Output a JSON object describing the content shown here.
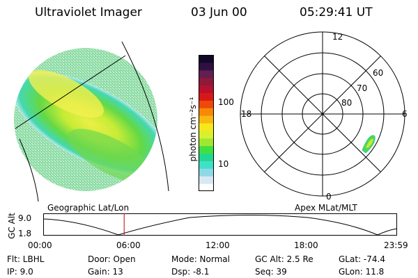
{
  "header": {
    "instrument": "Ultraviolet Imager",
    "date": "03 Jun 00",
    "time": "05:29:41 UT"
  },
  "colorbar": {
    "label": "photon cm⁻²s⁻¹",
    "ticks": [
      "100",
      "10"
    ],
    "colors": [
      "#ffffff",
      "#d8e8f0",
      "#8fd8e8",
      "#40e0c8",
      "#20d890",
      "#40e040",
      "#a0e830",
      "#d8f030",
      "#f8e818",
      "#f8b810",
      "#f88808",
      "#f04808",
      "#d81818",
      "#b81030",
      "#901838",
      "#602050",
      "#301040",
      "#100828"
    ]
  },
  "geo_panel": {
    "label": "Geographic Lat/Lon"
  },
  "polar_panel": {
    "label": "Apex MLat/MLT",
    "mlt_labels": {
      "top": "12",
      "left": "18",
      "right": "6",
      "bottom": "0"
    },
    "lat_labels": [
      "60",
      "70",
      "80"
    ]
  },
  "timeline": {
    "ylabel": "GC Alt",
    "y_ticks": [
      "9.0",
      "1.8"
    ],
    "x_ticks": [
      "00:00",
      "06:00",
      "12:00",
      "18:00",
      "23:59"
    ],
    "current_marker_hours": 5.49
  },
  "info": {
    "flt": "Flt:  LBHL",
    "ip": "IP:  9.0",
    "door": "Door:  Open",
    "gain": "Gain:  13",
    "mode": "Mode:  Normal",
    "dsp": "Dsp:    -8.1",
    "gc_alt": "GC Alt:  2.5 Re",
    "seq": "Seq:  39",
    "glat": "GLat:   -74.4",
    "glon": "GLon:    11.8"
  }
}
